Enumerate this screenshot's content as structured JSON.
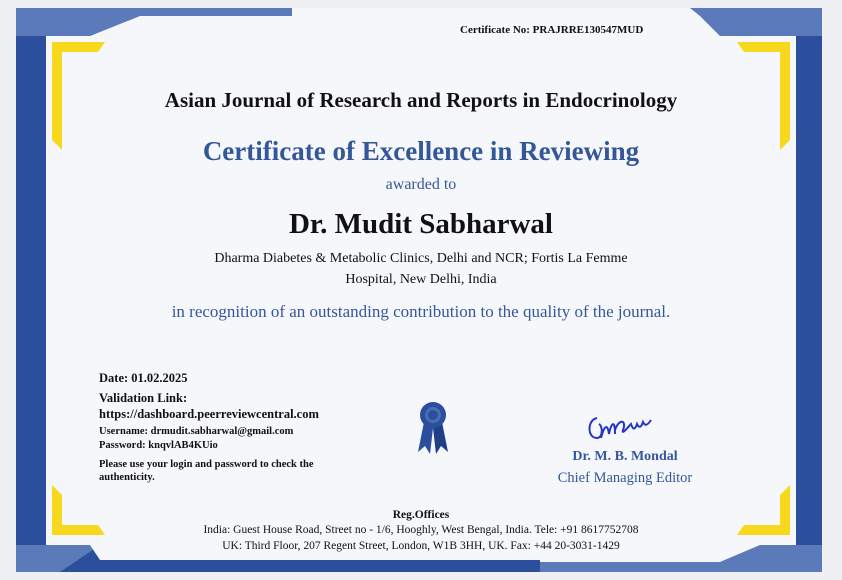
{
  "certificate_number": "Certificate No: PRAJRRE130547MUD",
  "journal": "Asian Journal of Research and Reports in Endocrinology",
  "title": "Certificate of Excellence in Reviewing",
  "awarded_to": "awarded to",
  "recipient": {
    "name": "Dr. Mudit Sabharwal",
    "affiliation_line1": "Dharma Diabetes & Metabolic Clinics, Delhi and NCR; Fortis La Femme",
    "affiliation_line2": "Hospital, New Delhi, India"
  },
  "recognition": "in recognition of an outstanding contribution to the quality of the journal.",
  "validation": {
    "date": "Date: 01.02.2025",
    "link_label": "Validation Link:",
    "link": "https://dashboard.peerreviewcentral.com",
    "username": "Username: drmudit.sabharwal@gmail.com",
    "password": "Password: knqvlAB4KUio",
    "note": "Please use your login and password to check the authenticity."
  },
  "signatory": {
    "name": "Dr. M. B. Mondal",
    "role": "Chief Managing Editor"
  },
  "offices": {
    "heading": "Reg.Offices",
    "india": "India: Guest House Road, Street no - 1/6, Hooghly, West Bengal, India. Tele: +91 8617752708",
    "uk": "UK: Third Floor, 207 Regent Street, London, W1B 3HH, UK. Fax: +44 20-3031-1429"
  },
  "colors": {
    "frame_dark": "#2b4f9c",
    "frame_light": "#5b7ab9",
    "accent_yellow": "#f7d81c",
    "title_blue": "#34579a"
  },
  "icons": [
    "award-ribbon-icon",
    "signature"
  ]
}
